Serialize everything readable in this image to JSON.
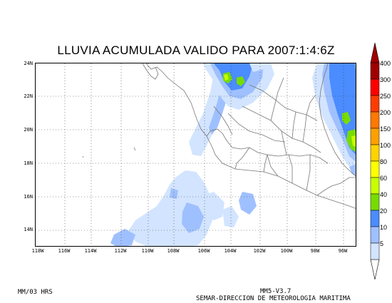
{
  "title": "LLUVIA ACUMULADA VALIDO PARA 2007:1:4:6Z",
  "lat_labels": [
    "24N",
    "22N",
    "20N",
    "18N",
    "16N",
    "14N"
  ],
  "lon_labels": [
    "118W",
    "116W",
    "114W",
    "112W",
    "110W",
    "108W",
    "106W",
    "104W",
    "102W",
    "100W",
    "98W",
    "96W"
  ],
  "legend": {
    "levels": [
      "400",
      "300",
      "250",
      "200",
      "150",
      "100",
      "80",
      "60",
      "40",
      "20",
      "10",
      "5"
    ],
    "colors": [
      "#a00000",
      "#ff0000",
      "#ff3c00",
      "#ff7800",
      "#ffa000",
      "#ffd200",
      "#ffff00",
      "#c8ff00",
      "#78dc00",
      "#4b8cff",
      "#9fc0ff",
      "#d2e4ff"
    ]
  },
  "footer": {
    "left": "MM/03 HRS",
    "model": "MM5-V3.7",
    "org": "SEMAR-DIRECCION DE METEOROLOGIA MARITIMA"
  }
}
